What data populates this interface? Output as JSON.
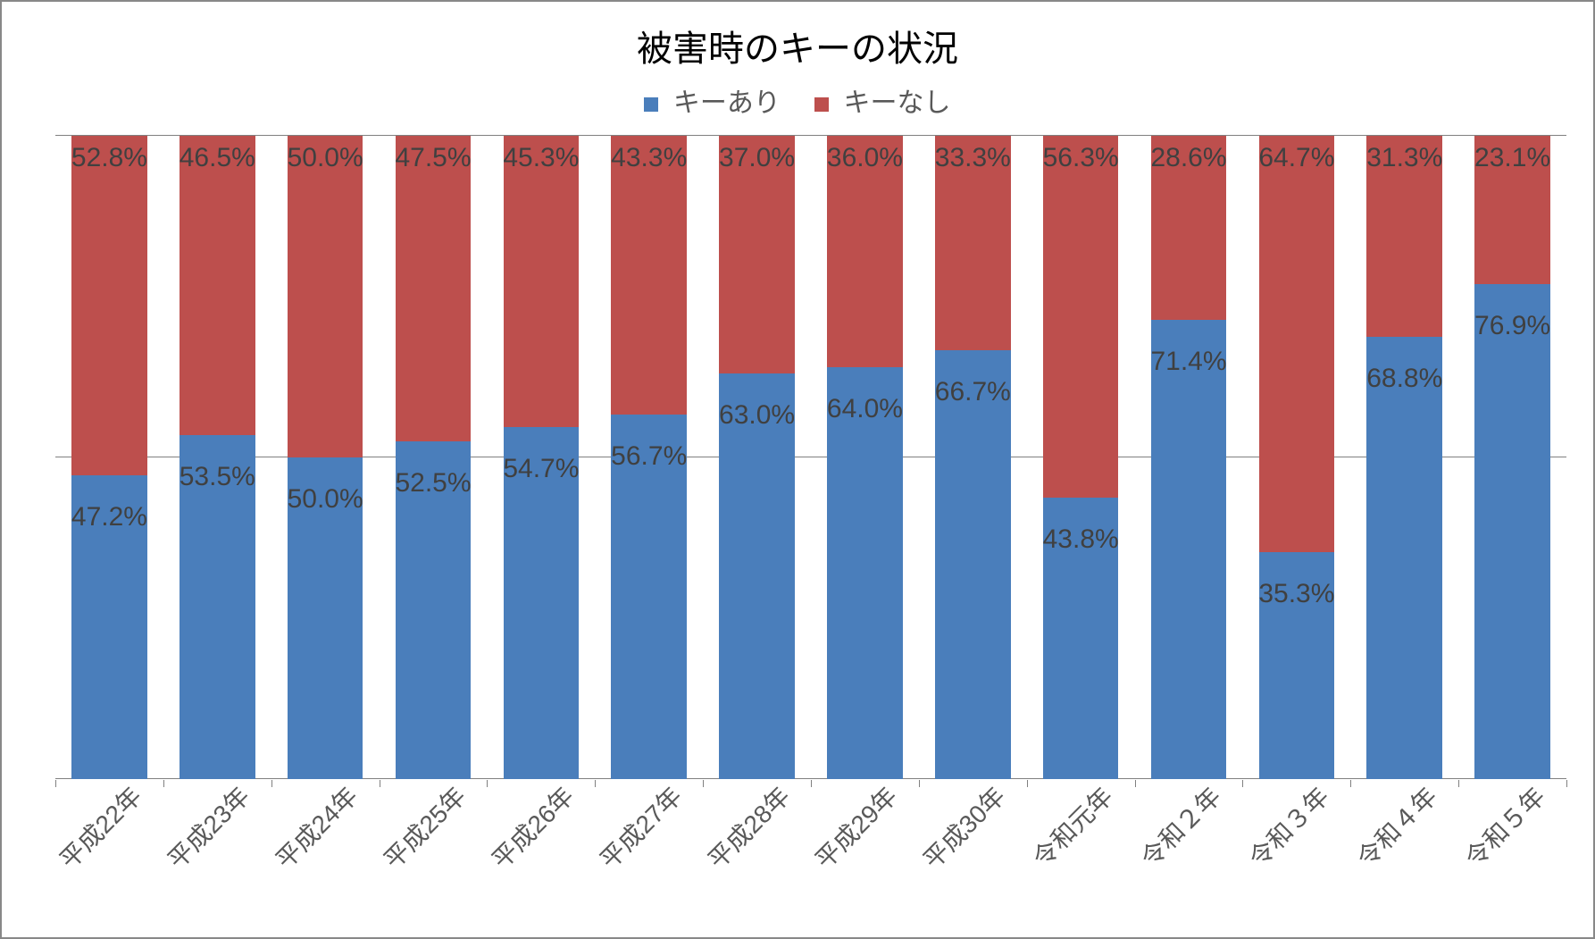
{
  "chart": {
    "type": "stacked-bar-100pct",
    "title": "被害時のキーの状況",
    "title_fontsize": 40,
    "title_color": "#000000",
    "legend_fontsize": 30,
    "legend_color": "#595959",
    "axis_label_fontsize": 28,
    "axis_label_color": "#595959",
    "value_label_fontsize": 30,
    "value_label_color": "#404040",
    "background_color": "#ffffff",
    "border_color": "#888888",
    "grid_color": "#808080",
    "gridlines_pct": [
      0,
      50,
      100
    ],
    "bar_width_ratio": 0.7,
    "x_label_rotation_deg": -45,
    "series": [
      {
        "key": "key_ari",
        "label": "キーあり",
        "color": "#4a7ebb"
      },
      {
        "key": "key_nashi",
        "label": "キーなし",
        "color": "#bd4f4d"
      }
    ],
    "categories": [
      "平成22年",
      "平成23年",
      "平成24年",
      "平成25年",
      "平成26年",
      "平成27年",
      "平成28年",
      "平成29年",
      "平成30年",
      "令和元年",
      "令和２年",
      "令和３年",
      "令和４年",
      "令和５年"
    ],
    "values": {
      "key_ari": [
        47.2,
        53.5,
        50.0,
        52.5,
        54.7,
        56.7,
        63.0,
        64.0,
        66.7,
        43.8,
        71.4,
        35.3,
        68.8,
        76.9
      ],
      "key_nashi": [
        52.8,
        46.5,
        50.0,
        47.5,
        45.3,
        43.3,
        37.0,
        36.0,
        33.3,
        56.3,
        28.6,
        64.7,
        31.3,
        23.1
      ]
    },
    "value_label_suffix": "%"
  }
}
